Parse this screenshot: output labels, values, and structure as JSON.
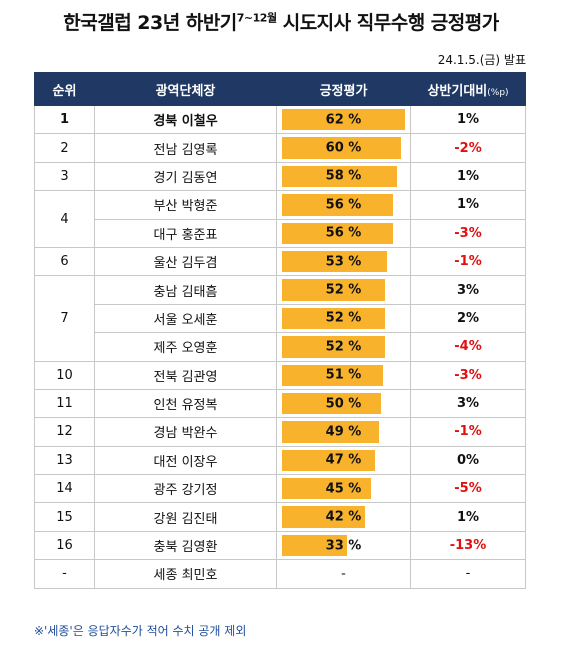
{
  "header": {
    "title": "한국갤럽 23년 하반기",
    "title_sup": "7~12월",
    "title_rest": "시도지사 직무수행 긍정평가",
    "date": "24.1.5.(금) 발표"
  },
  "table": {
    "columns": [
      "순위",
      "광역단체장",
      "긍정평가",
      "상반기대비"
    ],
    "column_unit": "(%p)",
    "bar_color": "#f8b22c",
    "rows": [
      {
        "rank": "1",
        "name": "경북 이철우",
        "rating": 62,
        "rating_label": "62 %",
        "change": "1%"
      },
      {
        "rank": "2",
        "name": "전남 김영록",
        "rating": 60,
        "rating_label": "60 %",
        "change": "-2%"
      },
      {
        "rank": "3",
        "name": "경기 김동연",
        "rating": 58,
        "rating_label": "58 %",
        "change": "1%"
      },
      {
        "rank": "4",
        "name": "부산 박형준",
        "rating": 56,
        "rating_label": "56 %",
        "change": "1%"
      },
      {
        "rank": null,
        "name": "대구 홍준표",
        "rating": 56,
        "rating_label": "56 %",
        "change": "-3%"
      },
      {
        "rank": "6",
        "name": "울산 김두겸",
        "rating": 53,
        "rating_label": "53 %",
        "change": "-1%"
      },
      {
        "rank": "7",
        "name": "충남 김태흠",
        "rating": 52,
        "rating_label": "52 %",
        "change": "3%"
      },
      {
        "rank": null,
        "name": "서울 오세훈",
        "rating": 52,
        "rating_label": "52 %",
        "change": "2%"
      },
      {
        "rank": null,
        "name": "제주 오영훈",
        "rating": 52,
        "rating_label": "52 %",
        "change": "-4%"
      },
      {
        "rank": "10",
        "name": "전북 김관영",
        "rating": 51,
        "rating_label": "51 %",
        "change": "-3%"
      },
      {
        "rank": "11",
        "name": "인천 유정복",
        "rating": 50,
        "rating_label": "50 %",
        "change": "3%"
      },
      {
        "rank": "12",
        "name": "경남 박완수",
        "rating": 49,
        "rating_label": "49 %",
        "change": "-1%"
      },
      {
        "rank": "13",
        "name": "대전 이장우",
        "rating": 47,
        "rating_label": "47 %",
        "change": "0%"
      },
      {
        "rank": "14",
        "name": "광주 강기정",
        "rating": 45,
        "rating_label": "45 %",
        "change": "-5%"
      },
      {
        "rank": "15",
        "name": "강원 김진태",
        "rating": 42,
        "rating_label": "42 %",
        "change": "1%"
      },
      {
        "rank": "16",
        "name": "충북 김영환",
        "rating": 33,
        "rating_label": "33 %",
        "change": "-13%"
      },
      {
        "rank": "-",
        "name": "세종 최민호",
        "rating": null,
        "rating_label": "-",
        "change": "-"
      }
    ]
  },
  "note": "※'세종'은 응답자수가 적어 수치 공개 제외"
}
